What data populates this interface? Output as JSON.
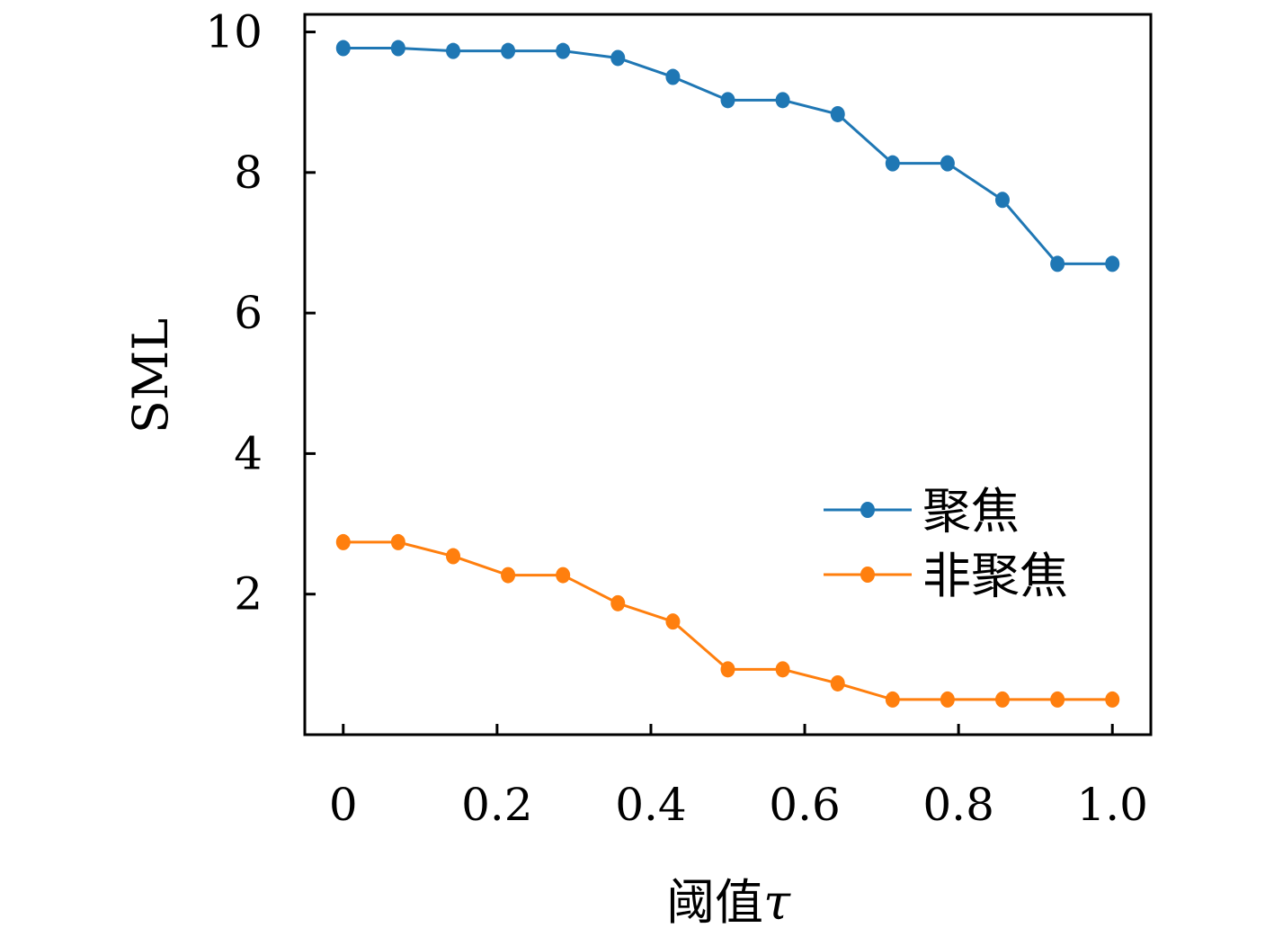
{
  "chart_data": {
    "type": "line",
    "title": "",
    "xlabel": "阈值τ",
    "xlabel_parts": {
      "text": "阈值",
      "symbol": "τ"
    },
    "ylabel": "SML",
    "xlim": [
      -0.05,
      1.05
    ],
    "ylim": [
      0,
      10.25
    ],
    "xticks": [
      0,
      0.2,
      0.4,
      0.6,
      0.8,
      1.0
    ],
    "xtick_labels": [
      "0",
      "0.2",
      "0.4",
      "0.6",
      "0.8",
      "1.0"
    ],
    "yticks": [
      2,
      4,
      6,
      8,
      10
    ],
    "ytick_labels": [
      "2",
      "4",
      "6",
      "8",
      "10"
    ],
    "grid": false,
    "legend_position": "right",
    "x": [
      0,
      0.0714,
      0.1429,
      0.2143,
      0.2857,
      0.3571,
      0.4286,
      0.5,
      0.5714,
      0.6429,
      0.7143,
      0.7857,
      0.8571,
      0.9286,
      1.0
    ],
    "series": [
      {
        "name": "聚焦",
        "color": "#1f77b4",
        "values": [
          9.77,
          9.77,
          9.73,
          9.73,
          9.73,
          9.63,
          9.36,
          9.03,
          9.03,
          8.83,
          8.13,
          8.13,
          7.61,
          6.7,
          6.7
        ]
      },
      {
        "name": "非聚焦",
        "color": "#ff7f0e",
        "values": [
          2.74,
          2.74,
          2.54,
          2.27,
          2.27,
          1.87,
          1.61,
          0.93,
          0.93,
          0.73,
          0.5,
          0.5,
          0.5,
          0.5,
          0.5
        ]
      }
    ]
  }
}
